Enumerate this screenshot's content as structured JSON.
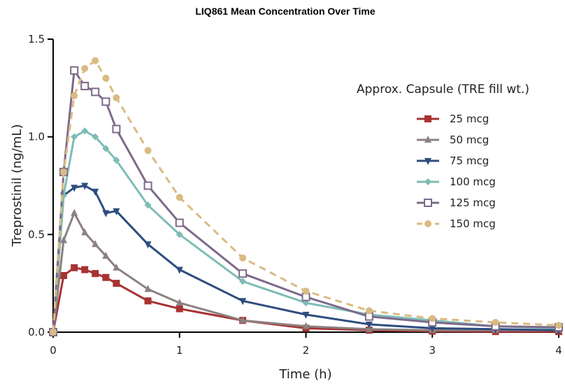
{
  "chart_data": {
    "type": "line",
    "title": "LIQ861 Mean Concentration Over Time",
    "xlabel": "Time (h)",
    "ylabel": "Treprostinil (ng/mL)",
    "xlim": [
      0,
      4
    ],
    "ylim": [
      0,
      1.5
    ],
    "x_ticks": [
      0,
      1,
      2,
      3,
      4
    ],
    "x_tick_labels": [
      "0",
      "1",
      "2",
      "3",
      "4"
    ],
    "y_ticks": [
      0,
      0.5,
      1.0,
      1.5
    ],
    "y_tick_labels": [
      "0.0",
      "0.5",
      "1.0",
      "1.5"
    ],
    "grid": false,
    "legend_title": "Approx. Capsule (TRE fill wt.)",
    "legend_position": "right",
    "series": [
      {
        "name": "25 mcg",
        "color": "#a83232",
        "marker": "square-filled",
        "dashed": false,
        "x": [
          0,
          0.083,
          0.167,
          0.25,
          0.333,
          0.417,
          0.5,
          0.75,
          1,
          1.5,
          2,
          2.5,
          3,
          3.5,
          4
        ],
        "y": [
          0,
          0.29,
          0.33,
          0.32,
          0.3,
          0.28,
          0.25,
          0.16,
          0.12,
          0.06,
          0.02,
          0.01,
          0.005,
          0.003,
          0.003
        ]
      },
      {
        "name": "50 mcg",
        "color": "#8c8080",
        "marker": "triangle-up",
        "dashed": false,
        "x": [
          0,
          0.083,
          0.167,
          0.25,
          0.333,
          0.417,
          0.5,
          0.75,
          1,
          1.5,
          2,
          2.5,
          3,
          3.5,
          4
        ],
        "y": [
          0,
          0.47,
          0.61,
          0.51,
          0.45,
          0.39,
          0.33,
          0.22,
          0.15,
          0.06,
          0.03,
          0.015,
          0.01,
          0.01,
          0.01
        ]
      },
      {
        "name": "75 mcg",
        "color": "#2d4d7d",
        "marker": "triangle-down",
        "dashed": false,
        "x": [
          0,
          0.083,
          0.167,
          0.25,
          0.333,
          0.417,
          0.5,
          0.75,
          1,
          1.5,
          2,
          2.5,
          3,
          3.5,
          4
        ],
        "y": [
          0,
          0.7,
          0.74,
          0.75,
          0.72,
          0.61,
          0.62,
          0.45,
          0.32,
          0.16,
          0.09,
          0.04,
          0.02,
          0.015,
          0.01
        ]
      },
      {
        "name": "100 mcg",
        "color": "#7fbcb6",
        "marker": "diamond-filled",
        "dashed": false,
        "x": [
          0,
          0.083,
          0.167,
          0.25,
          0.333,
          0.417,
          0.5,
          0.75,
          1,
          1.5,
          2,
          2.5,
          3,
          3.5,
          4
        ],
        "y": [
          0,
          0.7,
          1.0,
          1.03,
          1.0,
          0.94,
          0.88,
          0.65,
          0.5,
          0.26,
          0.15,
          0.09,
          0.06,
          0.03,
          0.02
        ]
      },
      {
        "name": "125 mcg",
        "color": "#7d6a8a",
        "marker": "square-open",
        "dashed": false,
        "x": [
          0,
          0.083,
          0.167,
          0.25,
          0.333,
          0.417,
          0.5,
          0.75,
          1,
          1.5,
          2,
          2.5,
          3,
          3.5,
          4
        ],
        "y": [
          0,
          0.82,
          1.34,
          1.26,
          1.23,
          1.18,
          1.04,
          0.75,
          0.56,
          0.3,
          0.18,
          0.08,
          0.05,
          0.03,
          0.025
        ]
      },
      {
        "name": "150 mcg",
        "color": "#d9bb82",
        "marker": "circle-filled",
        "dashed": true,
        "x": [
          0,
          0.083,
          0.167,
          0.25,
          0.333,
          0.417,
          0.5,
          0.75,
          1,
          1.5,
          2,
          2.5,
          3,
          3.5,
          4
        ],
        "y": [
          0,
          0.82,
          1.21,
          1.35,
          1.39,
          1.3,
          1.2,
          0.93,
          0.69,
          0.38,
          0.21,
          0.11,
          0.07,
          0.05,
          0.035
        ]
      }
    ]
  }
}
